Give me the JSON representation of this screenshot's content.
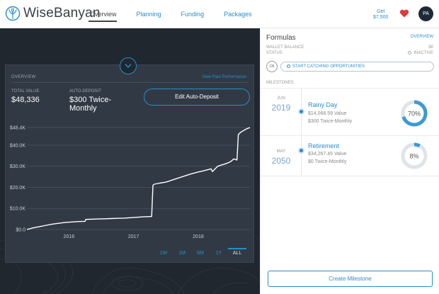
{
  "app": {
    "name": "WiseBanyan"
  },
  "nav": {
    "items": [
      {
        "label": "Overview",
        "active": true
      },
      {
        "label": "Planning"
      },
      {
        "label": "Funding"
      },
      {
        "label": "Packages"
      }
    ]
  },
  "header": {
    "get_label": "Get",
    "get_amount": "$7,500",
    "avatar_initials": "PA"
  },
  "overview_card": {
    "heading": "OVERVIEW",
    "past_perf_link": "View Past Performance",
    "total_value_label": "TOTAL VALUE",
    "total_value": "$48,336",
    "auto_deposit_label": "AUTO-DEPOSIT",
    "auto_deposit_line1": "$300 Twice-",
    "auto_deposit_line2": "Monthly",
    "edit_button": "Edit Auto-Deposit",
    "ranges": [
      "1W",
      "1M",
      "6M",
      "1Y",
      "ALL"
    ],
    "selected_range": "ALL"
  },
  "chart_data": {
    "type": "line",
    "ylabel": "",
    "xlabel": "",
    "y_tick_labels": [
      "$0.0",
      "$10.0K",
      "$20.0K",
      "$30.0K",
      "$40.0K",
      "$48.4K"
    ],
    "y_ticks": [
      0,
      10000,
      20000,
      30000,
      40000,
      48400
    ],
    "x_tick_labels": [
      "2016",
      "2017",
      "2018"
    ],
    "x_ticks": [
      2016.0,
      2017.0,
      2018.0
    ],
    "xlim": [
      2015.35,
      2018.8
    ],
    "ylim": [
      0,
      48400
    ],
    "series": [
      {
        "x": [
          2015.35,
          2015.45,
          2015.55,
          2015.65,
          2015.75,
          2015.85,
          2015.95,
          2016.05,
          2016.15,
          2016.25,
          2016.26,
          2016.35,
          2016.45,
          2016.55,
          2016.65,
          2016.75,
          2016.85,
          2016.95,
          2017.05,
          2017.15,
          2017.28,
          2017.3,
          2017.32,
          2017.4,
          2017.5,
          2017.6,
          2017.7,
          2017.8,
          2017.9,
          2018.0,
          2018.1,
          2018.2,
          2018.22,
          2018.3,
          2018.4,
          2018.45,
          2018.5,
          2018.55,
          2018.6,
          2018.62,
          2018.65,
          2018.7,
          2018.75,
          2018.8
        ],
        "y": [
          0,
          800,
          1400,
          2000,
          2600,
          3000,
          3400,
          3600,
          3800,
          3900,
          4800,
          4900,
          5000,
          5100,
          5200,
          5300,
          5400,
          5600,
          5800,
          6000,
          6200,
          21000,
          21500,
          22000,
          22500,
          23500,
          24500,
          25500,
          26500,
          27300,
          28000,
          28800,
          27500,
          30000,
          31000,
          31500,
          32200,
          33500,
          33000,
          45000,
          46000,
          47000,
          47800,
          48400
        ]
      }
    ],
    "grid": true
  },
  "formulas": {
    "title": "Formulas",
    "overview_link": "OVERVIEW",
    "wallet_label": "WALLET BALANCE",
    "wallet_value": "$0",
    "status_label": "STATUS",
    "status_value": "INACTIVE",
    "cb_initials": "CB",
    "catch_button": "START CATCHING OPPORTUNITIES",
    "milestones_label": "MILESTONES",
    "milestones": [
      {
        "month": "JUN",
        "year": "2019",
        "name": "Rainy Day",
        "value": "$14,068.59 Value",
        "deposit": "$300 Twice-Monthly",
        "percent": 70,
        "percent_label": "70%"
      },
      {
        "month": "MAY",
        "year": "2050",
        "name": "Retirement",
        "value": "$34,267.45 Value",
        "deposit": "$0 Twice-Monthly",
        "percent": 8,
        "percent_label": "8%"
      }
    ],
    "create_button": "Create Milestone"
  },
  "colors": {
    "accent": "#2a8dc8",
    "dark_bg": "#20272f",
    "card_bg": "#313a44",
    "heart": "#e0393e"
  }
}
